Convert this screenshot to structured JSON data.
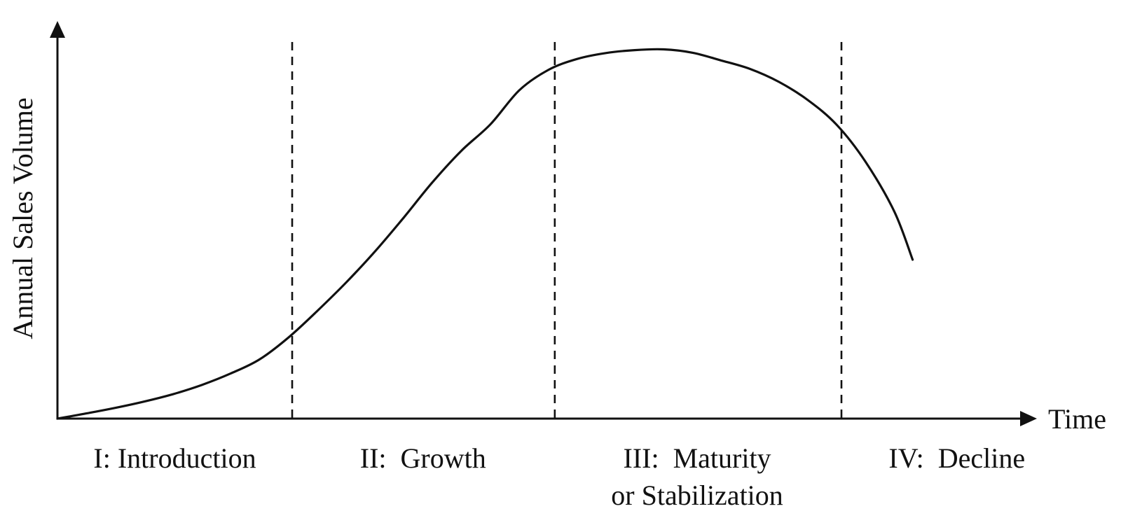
{
  "chart_data": {
    "type": "line",
    "title": "",
    "xlabel": "Time",
    "ylabel": "Annual Sales Volume",
    "ylim": [
      0,
      100
    ],
    "xlim": [
      0,
      100
    ],
    "grid": false,
    "legend": "none",
    "axis_ticks": "none",
    "series": [
      {
        "points": [
          {
            "x": 0,
            "y": 0
          },
          {
            "x": 3,
            "y": 1.4
          },
          {
            "x": 6,
            "y": 2.9
          },
          {
            "x": 9,
            "y": 4.6
          },
          {
            "x": 12,
            "y": 6.6
          },
          {
            "x": 15,
            "y": 9.1
          },
          {
            "x": 18,
            "y": 12.2
          },
          {
            "x": 21,
            "y": 16.0
          },
          {
            "x": 24,
            "y": 21.9
          },
          {
            "x": 27,
            "y": 29.1
          },
          {
            "x": 30,
            "y": 36.8
          },
          {
            "x": 33,
            "y": 45.2
          },
          {
            "x": 36,
            "y": 54.4
          },
          {
            "x": 39,
            "y": 64.0
          },
          {
            "x": 42,
            "y": 72.5
          },
          {
            "x": 45,
            "y": 79.6
          },
          {
            "x": 48,
            "y": 88.8
          },
          {
            "x": 51,
            "y": 94.3
          },
          {
            "x": 54,
            "y": 97.3
          },
          {
            "x": 57,
            "y": 98.9
          },
          {
            "x": 60,
            "y": 99.7
          },
          {
            "x": 63,
            "y": 99.9
          },
          {
            "x": 66,
            "y": 99.0
          },
          {
            "x": 69,
            "y": 96.9
          },
          {
            "x": 72,
            "y": 94.6
          },
          {
            "x": 75,
            "y": 91.1
          },
          {
            "x": 78,
            "y": 86.2
          },
          {
            "x": 81,
            "y": 79.5
          },
          {
            "x": 84,
            "y": 69.5
          },
          {
            "x": 87,
            "y": 56.0
          },
          {
            "x": 88.9,
            "y": 43.0
          }
        ]
      }
    ],
    "stage_boundaries": [
      24.4,
      51.7,
      81.5
    ],
    "stages": [
      {
        "label": [
          "I: Introduction"
        ],
        "center_x": 12.2
      },
      {
        "label": [
          "II:  Growth"
        ],
        "center_x": 38.0
      },
      {
        "label": [
          "III:  Maturity",
          "or Stabilization"
        ],
        "center_x": 66.5
      },
      {
        "label": [
          "IV:  Decline"
        ],
        "center_x": 93.5
      }
    ]
  }
}
